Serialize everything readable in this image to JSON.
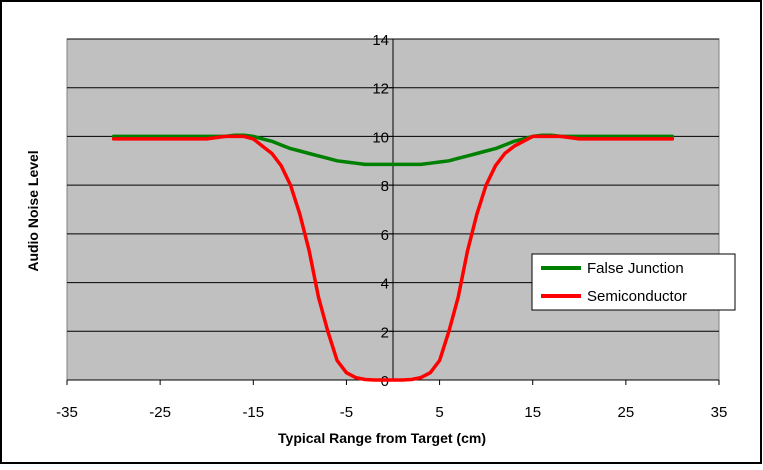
{
  "chart_data": {
    "type": "line",
    "title": "",
    "xlabel": "Typical Range from Target (cm)",
    "ylabel": "Audio Noise Level",
    "xlim": [
      -35,
      35
    ],
    "ylim": [
      0,
      14
    ],
    "x_ticks": [
      -35,
      -25,
      -15,
      -5,
      5,
      15,
      25,
      35
    ],
    "y_ticks": [
      0,
      2,
      4,
      6,
      8,
      10,
      12,
      14
    ],
    "grid": true,
    "legend_position": "right",
    "plot_background": "#c0c0c0",
    "series": [
      {
        "name": "False Junction",
        "color": "#008000",
        "x": [
          -30,
          -28,
          -26,
          -24,
          -22,
          -20,
          -18,
          -17,
          -16,
          -15,
          -14,
          -13,
          -12,
          -11,
          -10,
          -9,
          -8,
          -7,
          -6,
          -5,
          -4,
          -3,
          -2,
          -1,
          0,
          1,
          2,
          3,
          4,
          5,
          6,
          7,
          8,
          9,
          10,
          11,
          12,
          13,
          14,
          15,
          16,
          17,
          18,
          20,
          22,
          24,
          26,
          28,
          30
        ],
        "y": [
          10.0,
          10.0,
          10.0,
          10.0,
          10.0,
          10.0,
          10.0,
          10.05,
          10.05,
          10.0,
          9.9,
          9.8,
          9.65,
          9.5,
          9.4,
          9.3,
          9.2,
          9.1,
          9.0,
          8.95,
          8.9,
          8.85,
          8.85,
          8.85,
          8.85,
          8.85,
          8.85,
          8.85,
          8.9,
          8.95,
          9.0,
          9.1,
          9.2,
          9.3,
          9.4,
          9.5,
          9.65,
          9.8,
          9.9,
          10.0,
          10.05,
          10.05,
          10.0,
          10.0,
          10.0,
          10.0,
          10.0,
          10.0,
          10.0
        ]
      },
      {
        "name": "Semiconductor",
        "color": "#ff0000",
        "x": [
          -30,
          -28,
          -26,
          -24,
          -22,
          -20,
          -18,
          -17,
          -16,
          -15,
          -14,
          -13,
          -12,
          -11,
          -10,
          -9,
          -8,
          -7,
          -6,
          -5,
          -4,
          -3,
          -2,
          -1,
          0,
          1,
          2,
          3,
          4,
          5,
          6,
          7,
          8,
          9,
          10,
          11,
          12,
          13,
          14,
          15,
          16,
          17,
          18,
          20,
          22,
          24,
          26,
          28,
          30
        ],
        "y": [
          9.9,
          9.9,
          9.9,
          9.9,
          9.9,
          9.9,
          10.0,
          10.0,
          10.0,
          9.9,
          9.6,
          9.3,
          8.8,
          8.0,
          6.8,
          5.3,
          3.4,
          2.0,
          0.8,
          0.3,
          0.1,
          0.02,
          0.0,
          0.0,
          0.0,
          0.0,
          0.02,
          0.1,
          0.3,
          0.8,
          2.0,
          3.4,
          5.3,
          6.8,
          8.0,
          8.8,
          9.3,
          9.6,
          9.8,
          10.0,
          10.0,
          10.0,
          10.0,
          9.9,
          9.9,
          9.9,
          9.9,
          9.9,
          9.9
        ]
      }
    ]
  }
}
